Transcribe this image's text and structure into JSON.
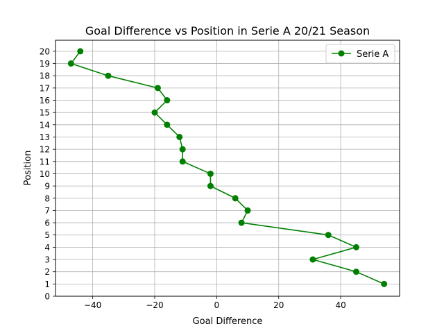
{
  "chart_data": {
    "type": "line",
    "title": "Goal Difference vs Position in Serie A 20/21 Season",
    "xlabel": "Goal Difference",
    "ylabel": "Position",
    "xlim": [
      -52,
      59
    ],
    "ylim": [
      0,
      20.9
    ],
    "xticks": [
      -40,
      -20,
      0,
      20,
      40
    ],
    "yticks": [
      0,
      1,
      2,
      3,
      4,
      5,
      6,
      7,
      8,
      9,
      10,
      11,
      12,
      13,
      14,
      15,
      16,
      17,
      18,
      19,
      20
    ],
    "grid": true,
    "legend": {
      "position": "top-right"
    },
    "series": [
      {
        "name": "Serie A",
        "color": "#008000",
        "marker": "circle",
        "points": [
          {
            "x": 54,
            "y": 1
          },
          {
            "x": 45,
            "y": 2
          },
          {
            "x": 31,
            "y": 3
          },
          {
            "x": 45,
            "y": 4
          },
          {
            "x": 36,
            "y": 5
          },
          {
            "x": 8,
            "y": 6
          },
          {
            "x": 10,
            "y": 7
          },
          {
            "x": 6,
            "y": 8
          },
          {
            "x": -2,
            "y": 9
          },
          {
            "x": -2,
            "y": 10
          },
          {
            "x": -11,
            "y": 11
          },
          {
            "x": -11,
            "y": 12
          },
          {
            "x": -12,
            "y": 13
          },
          {
            "x": -16,
            "y": 14
          },
          {
            "x": -20,
            "y": 15
          },
          {
            "x": -16,
            "y": 16
          },
          {
            "x": -19,
            "y": 17
          },
          {
            "x": -35,
            "y": 18
          },
          {
            "x": -47,
            "y": 19
          },
          {
            "x": -44,
            "y": 20
          }
        ]
      }
    ]
  }
}
